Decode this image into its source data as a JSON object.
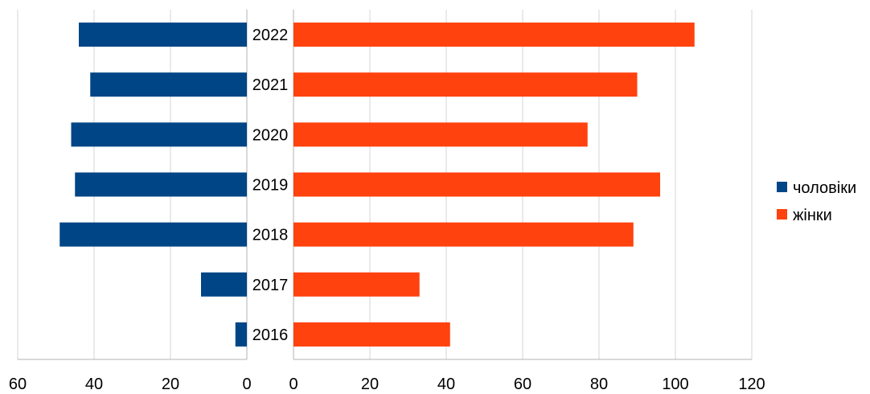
{
  "chart_data": {
    "type": "bar",
    "orientation": "horizontal",
    "layout": "butterfly",
    "categories": [
      "2022",
      "2021",
      "2020",
      "2019",
      "2018",
      "2017",
      "2016"
    ],
    "series": [
      {
        "name": "чоловіки",
        "color": "#004586",
        "side": "left",
        "values": [
          44,
          41,
          46,
          45,
          49,
          12,
          3
        ]
      },
      {
        "name": "жінки",
        "color": "#ff420e",
        "side": "right",
        "values": [
          105,
          90,
          77,
          96,
          89,
          33,
          41
        ]
      }
    ],
    "left_axis": {
      "range": [
        60,
        0
      ],
      "ticks": [
        "60",
        "40",
        "20",
        "0"
      ]
    },
    "right_axis": {
      "range": [
        0,
        120
      ],
      "ticks": [
        "0",
        "20",
        "40",
        "60",
        "80",
        "100",
        "120"
      ]
    },
    "grid": true,
    "legend_position": "right"
  }
}
